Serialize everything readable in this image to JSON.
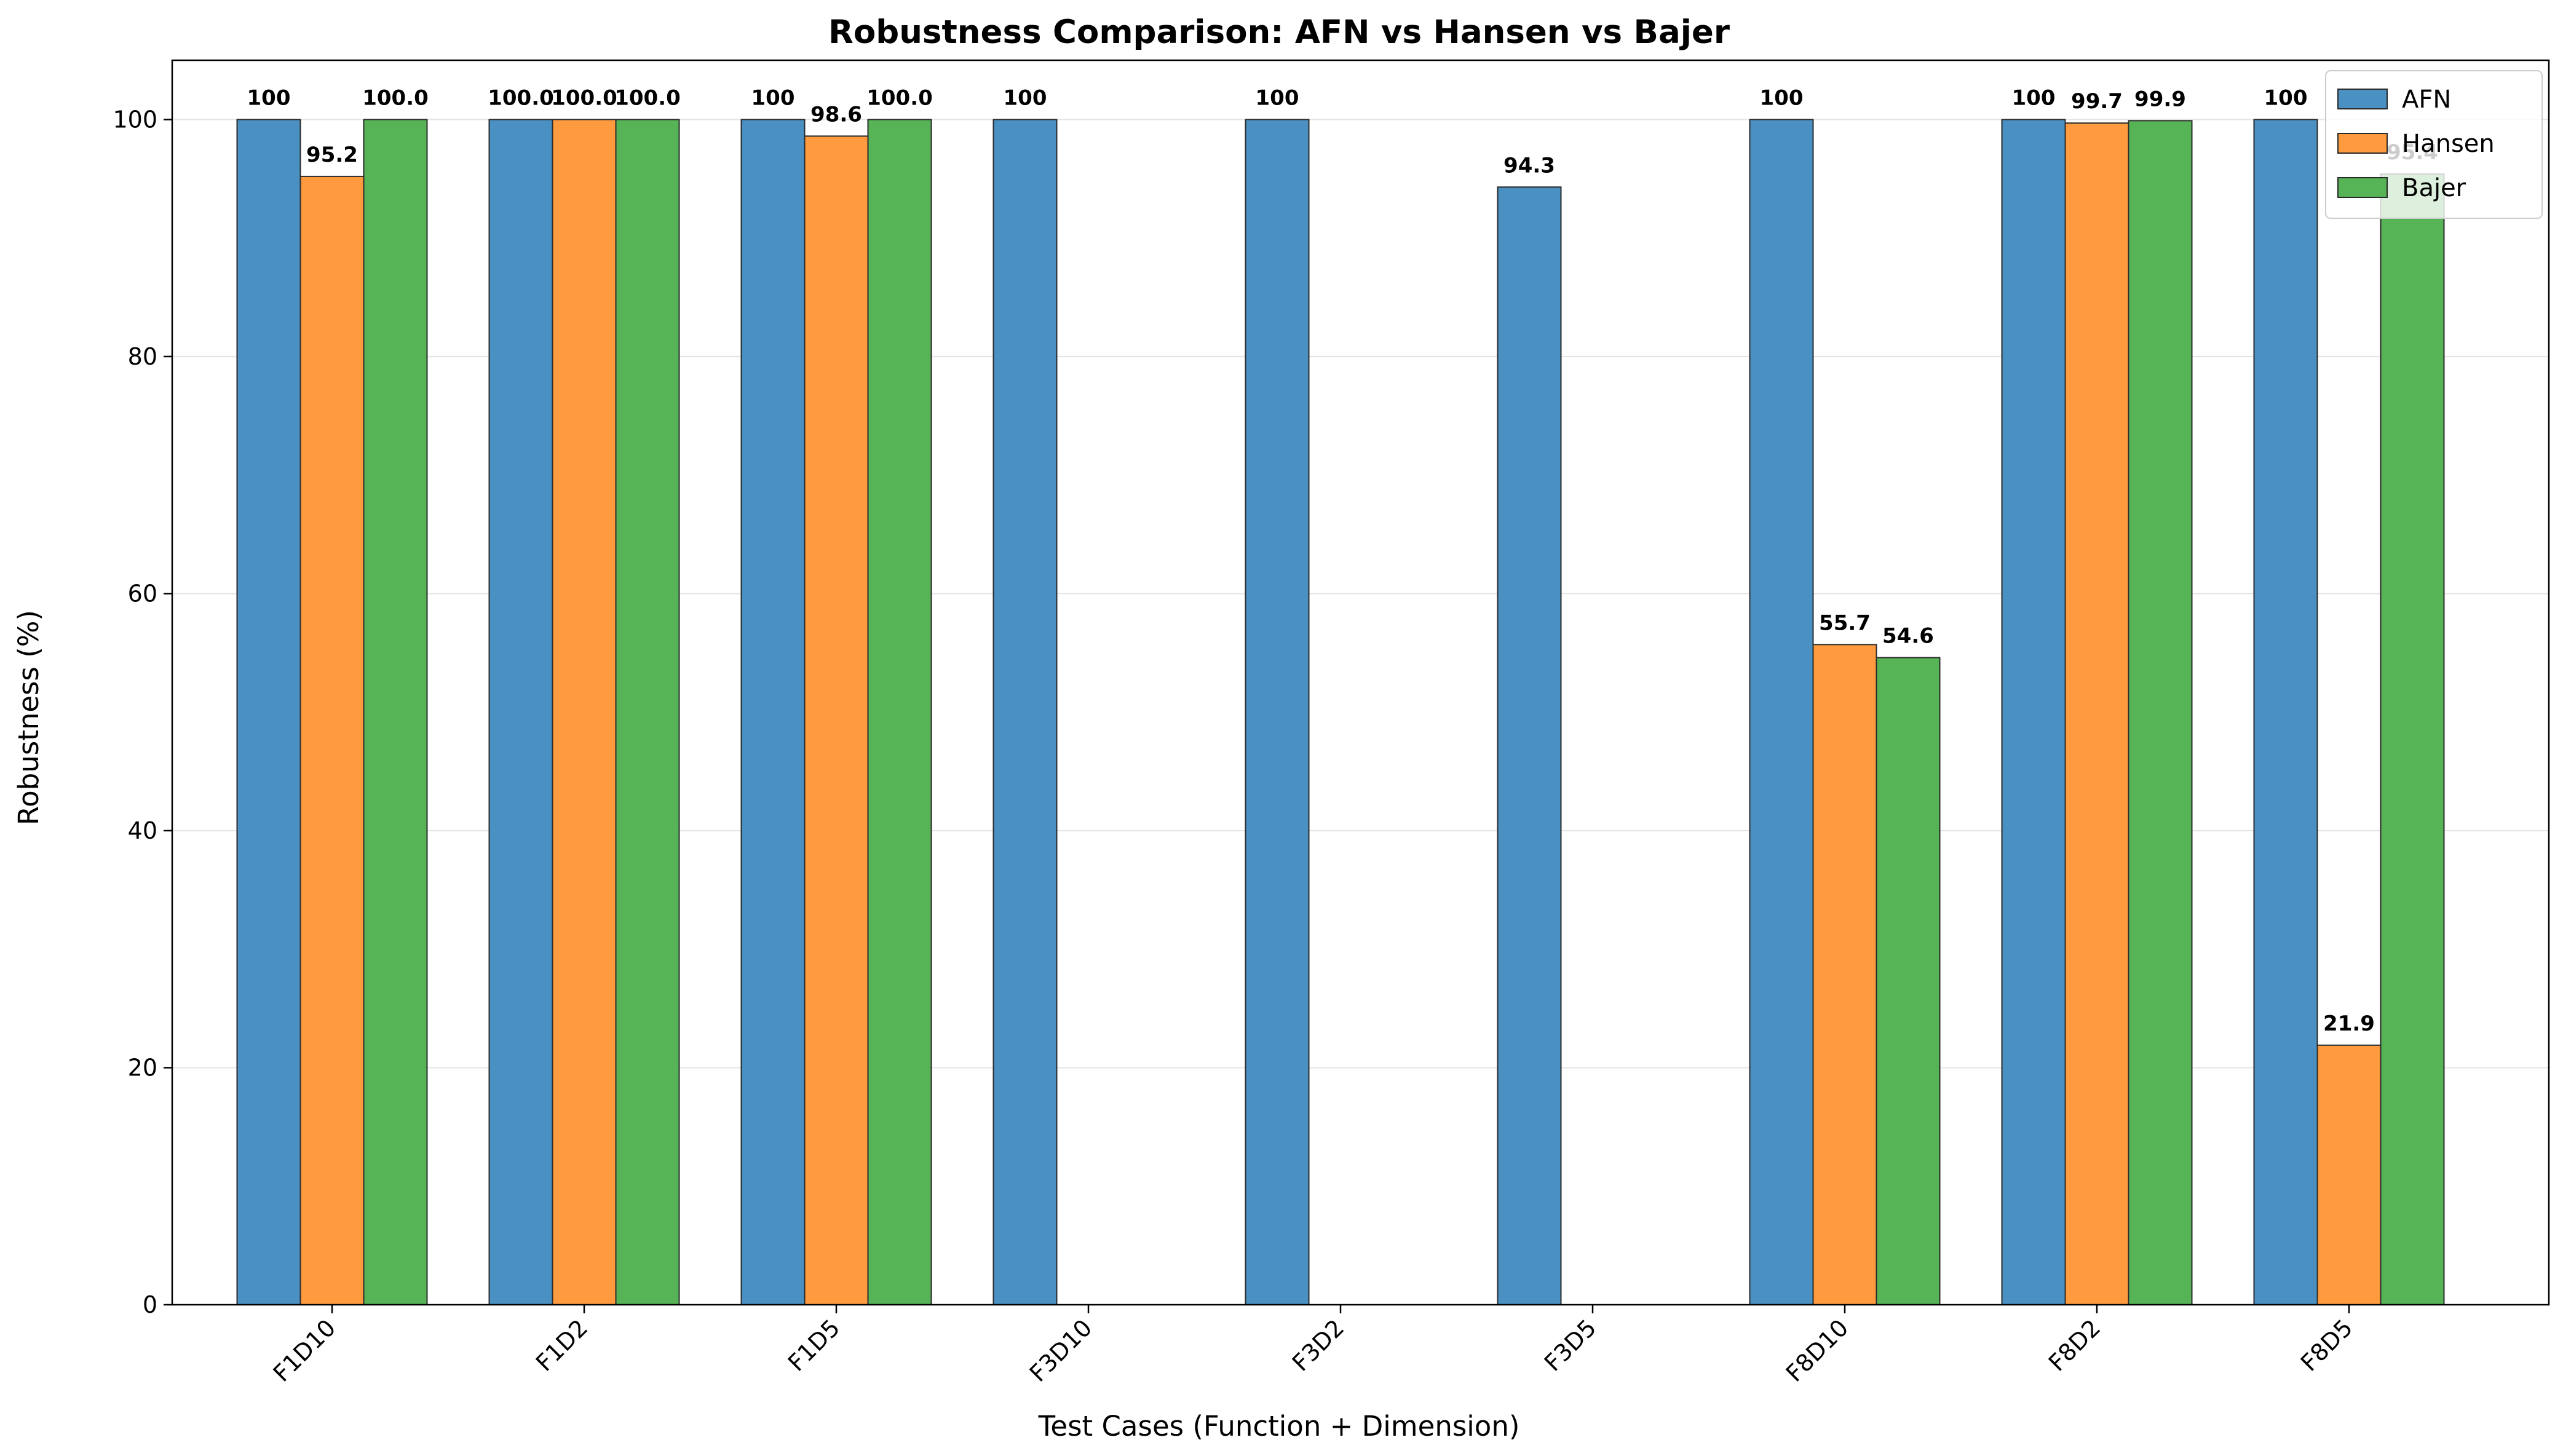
{
  "chart_data": {
    "type": "bar",
    "title": "Robustness Comparison: AFN vs Hansen vs Bajer",
    "xlabel": "Test Cases (Function + Dimension)",
    "ylabel": "Robustness (%)",
    "categories": [
      "F1D10",
      "F1D2",
      "F1D5",
      "F3D10",
      "F3D2",
      "F3D5",
      "F8D10",
      "F8D2",
      "F8D5"
    ],
    "ylim": [
      0,
      105
    ],
    "yticks": [
      0,
      20,
      40,
      60,
      80,
      100
    ],
    "grid": "y",
    "legend_position": "top-right",
    "series": [
      {
        "name": "AFN",
        "color": "#4a90c2",
        "values": [
          100,
          100,
          100,
          100,
          100,
          94.3,
          100,
          100,
          100
        ],
        "labels": [
          "100",
          "100.0",
          "100",
          "100",
          "100",
          "94.3",
          "100",
          "100",
          "100"
        ]
      },
      {
        "name": "Hansen",
        "color": "#ff9a3f",
        "values": [
          95.2,
          100,
          98.6,
          null,
          null,
          null,
          55.7,
          99.7,
          21.9
        ],
        "labels": [
          "95.2",
          "100.0",
          "98.6",
          null,
          null,
          null,
          "55.7",
          "99.7",
          "21.9"
        ]
      },
      {
        "name": "Bajer",
        "color": "#56b356",
        "values": [
          100,
          100,
          100,
          null,
          null,
          null,
          54.6,
          99.9,
          95.4
        ],
        "labels": [
          "100.0",
          "100.0",
          "100.0",
          null,
          null,
          null,
          "54.6",
          "99.9",
          "95.4"
        ]
      }
    ]
  }
}
